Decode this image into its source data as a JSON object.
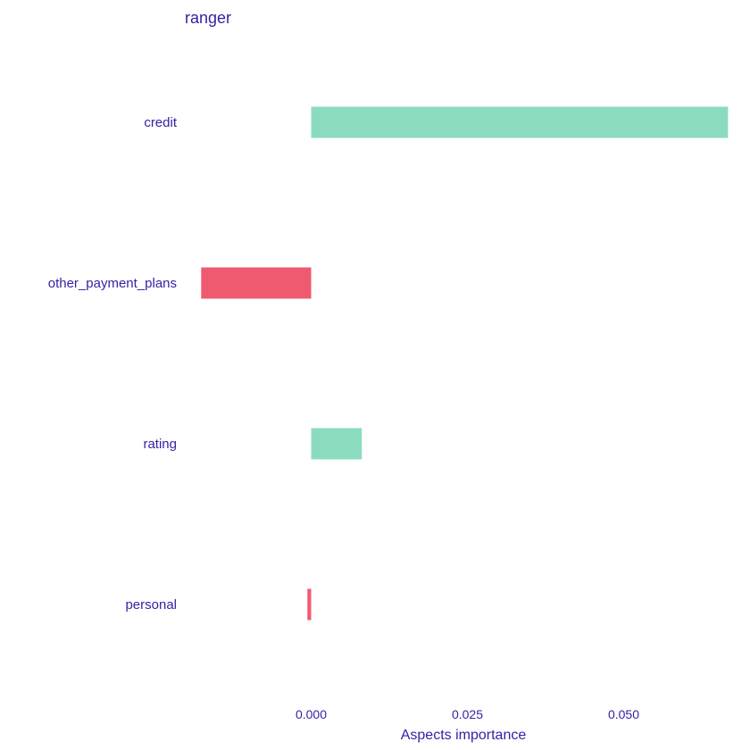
{
  "chart_data": {
    "type": "bar",
    "orientation": "horizontal",
    "title": "ranger",
    "xlabel": "Aspects importance",
    "ylabel": "",
    "categories": [
      "credit",
      "other_payment_plans",
      "rating",
      "personal"
    ],
    "values": [
      0.0667,
      -0.0176,
      0.0081,
      -0.0006
    ],
    "x_ticks": [
      0.0,
      0.025,
      0.05
    ],
    "x_tick_labels": [
      "0.000",
      "0.025",
      "0.050"
    ],
    "xlim": [
      -0.0195,
      0.0675
    ],
    "grid": false,
    "legend": "none",
    "colors": {
      "positive": "#8bdcbe",
      "negative": "#f05a71",
      "text": "#371ea3"
    }
  }
}
